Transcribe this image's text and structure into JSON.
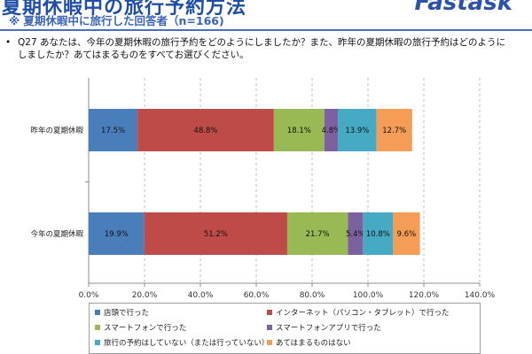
{
  "header": {
    "title": "夏期休暇中の旅行予約方法",
    "logo": "Fastask",
    "subtitle": "※ 夏期休暇中に旅行した回答者（n=166)"
  },
  "question": {
    "bullet": "•",
    "text": "Q27 あなたは、今年の夏期休暇の旅行予約をどのようにしましたか？また、昨年の夏期休暇の旅行予約はどのようにしましたか？あてはまるものをすべてお選びください。"
  },
  "chart_data": {
    "type": "bar",
    "orientation": "horizontal",
    "stacked": true,
    "categories": [
      "昨年の夏期休暇",
      "今年の夏期休暇"
    ],
    "series": [
      {
        "name": "店頭で行った",
        "values": [
          17.5,
          19.9
        ],
        "labels": [
          "17.5%",
          "19.9%"
        ],
        "color": "#4a7ebb"
      },
      {
        "name": "インターネット（パソコン・タブレット）で行った",
        "values": [
          48.8,
          51.2
        ],
        "labels": [
          "48.8%",
          "51.2%"
        ],
        "color": "#be4b48"
      },
      {
        "name": "スマートフォンで行った",
        "values": [
          18.1,
          21.7
        ],
        "labels": [
          "18.1%",
          "21.7%"
        ],
        "color": "#98b954"
      },
      {
        "name": "スマートフォンアプリで行った",
        "values": [
          4.8,
          5.4
        ],
        "labels": [
          "4.8%",
          "5.4%"
        ],
        "color": "#7d60a0"
      },
      {
        "name": "旅行の予約はしていない（または行っていない）",
        "values": [
          13.9,
          10.8
        ],
        "labels": [
          "13.9%",
          "10.8%"
        ],
        "color": "#46aac4"
      },
      {
        "name": "あてはまるものはない",
        "values": [
          12.7,
          9.6
        ],
        "labels": [
          "12.7%",
          "9.6%"
        ],
        "color": "#f59d56"
      }
    ],
    "xlim": [
      0,
      140
    ],
    "xticks": [
      0,
      20,
      40,
      60,
      80,
      100,
      120,
      140
    ],
    "xtick_labels": [
      "0.0%",
      "20.0%",
      "40.0%",
      "60.0%",
      "80.0%",
      "100.0%",
      "120.0%",
      "140.0%"
    ],
    "grid": "vertical-dashed",
    "legend": "bottom"
  }
}
